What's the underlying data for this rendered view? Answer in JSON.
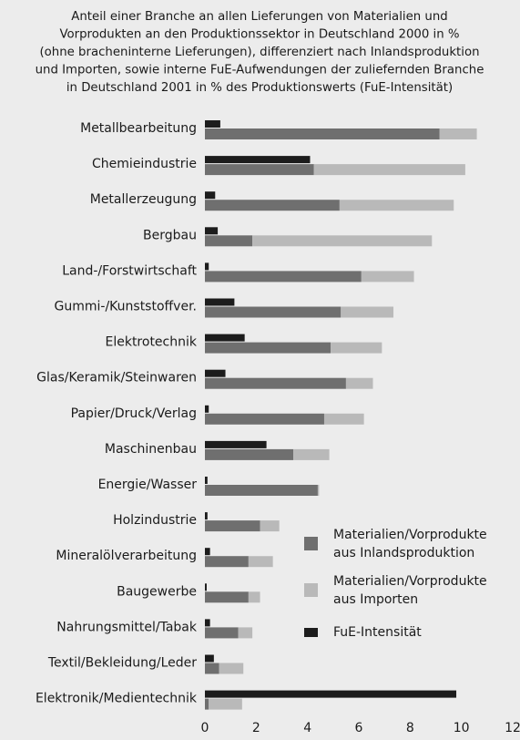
{
  "chart_data": {
    "type": "bar",
    "title": [
      "Anteil einer Branche an allen Lieferungen von Materialien und",
      "Vorprodukten an den Produktionssektor in Deutschland 2000 in %",
      "(ohne bracheninterne Lieferungen), differenziert nach Inlandsproduktion",
      "und Importen, sowie interne FuE-Aufwendungen der zuliefernden Branche",
      "in Deutschland 2001 in % des Produktionswerts (FuE-Intensität)"
    ],
    "orientation": "horizontal",
    "categories": [
      "Metallbearbeitung",
      "Chemieindustrie",
      "Metallerzeugung",
      "Bergbau",
      "Land-/Forstwirtschaft",
      "Gummi-/Kunststoffver.",
      "Elektrotechnik",
      "Glas/Keramik/Steinwaren",
      "Papier/Druck/Verlag",
      "Maschinenbau",
      "Energie/Wasser",
      "Holzindustrie",
      "Mineralölverarbeitung",
      "Baugewerbe",
      "Nahrungsmittel/Tabak",
      "Textil/Bekleidung/Leder",
      "Elektronik/Medientechnik"
    ],
    "series": [
      {
        "name": "Materialien/Vorprodukte aus Inlandsproduktion",
        "color": "#6f6f6f",
        "stack": "main",
        "values": [
          9.15,
          4.25,
          5.25,
          1.85,
          6.1,
          5.3,
          4.9,
          5.5,
          4.65,
          3.45,
          4.4,
          2.15,
          1.7,
          1.7,
          1.3,
          0.55,
          0.15
        ]
      },
      {
        "name": "Materialien/Vorprodukte aus Importen",
        "color": "#b9b9b9",
        "stack": "main",
        "values": [
          1.45,
          5.9,
          4.45,
          7.0,
          2.05,
          2.05,
          2.0,
          1.05,
          1.55,
          1.4,
          0.05,
          0.75,
          0.95,
          0.45,
          0.55,
          0.95,
          1.3
        ]
      },
      {
        "name": "FuE-Intensität",
        "color": "#1c1c1c",
        "stack": "fue",
        "values": [
          0.6,
          4.1,
          0.4,
          0.5,
          0.15,
          1.15,
          1.55,
          0.8,
          0.15,
          2.4,
          0.1,
          0.1,
          0.2,
          0.07,
          0.2,
          0.35,
          9.8
        ]
      }
    ],
    "xlim": [
      0,
      12
    ],
    "xticks": [
      0,
      2,
      4,
      6,
      8,
      10,
      12
    ],
    "grid": false,
    "legend": "lower right"
  }
}
